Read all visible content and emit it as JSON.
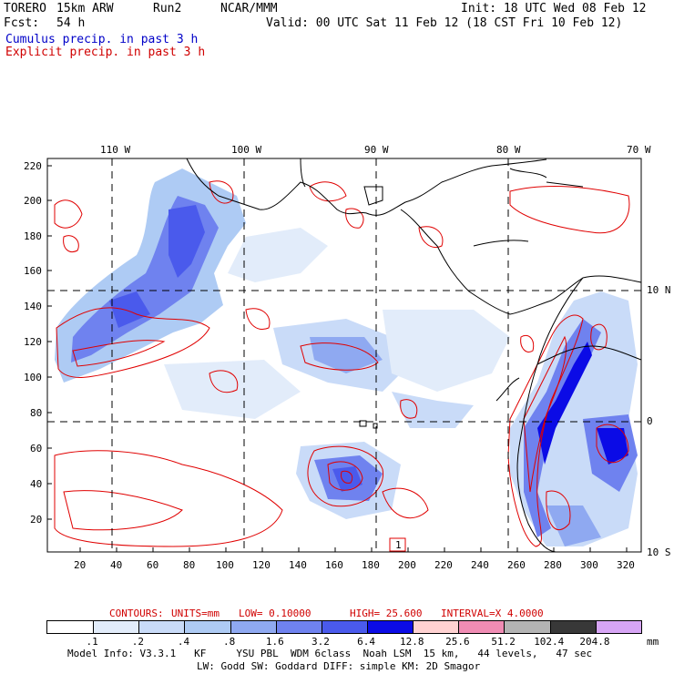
{
  "header": {
    "model": "TORERO",
    "resolution": "15km ARW",
    "run": "Run2",
    "org": "NCAR/MMM",
    "init": "Init: 18 UTC Wed 08 Feb 12",
    "fcst_label": "Fcst:",
    "fcst_value": "54 h",
    "valid": "Valid: 00 UTC Sat 11 Feb 12 (18 CST Fri 10 Feb 12)"
  },
  "legend_fields": {
    "cumulus": "Cumulus precip. in past 3 h",
    "explicit": "Explicit precip. in past 3 h"
  },
  "axes": {
    "top_lon": [
      "110 W",
      "100 W",
      "90 W",
      "80 W",
      "70 W"
    ],
    "right_lat": [
      "10 N",
      "0",
      "10 S"
    ],
    "left_ticks": [
      "220",
      "200",
      "180",
      "160",
      "140",
      "120",
      "100",
      "80",
      "60",
      "40",
      "20"
    ],
    "bottom_ticks": [
      "20",
      "40",
      "60",
      "80",
      "100",
      "120",
      "140",
      "160",
      "180",
      "200",
      "220",
      "240",
      "260",
      "280",
      "300",
      "320"
    ],
    "box_label": "1"
  },
  "contours_line": {
    "label": "CONTOURS:",
    "units": "UNITS=mm",
    "low": "LOW= 0.10000",
    "high": "HIGH= 25.600",
    "interval": "INTERVAL=X 4.0000"
  },
  "colorbar": {
    "labels": [
      ".1",
      ".2",
      ".4",
      ".8",
      "1.6",
      "3.2",
      "6.4",
      "12.8",
      "25.6",
      "51.2",
      "102.4",
      "204.8"
    ],
    "unit": "mm",
    "colors": [
      "#ffffff",
      "#e2ecfa",
      "#c9dbf8",
      "#aecbf4",
      "#8fa9f1",
      "#6f82ef",
      "#4a5aec",
      "#0b0be6",
      "#ffd2d2",
      "#f08cb4",
      "#b4b4b4",
      "#383838",
      "#d7a5f5"
    ]
  },
  "footer": {
    "line1": "Model Info: V3.3.1   KF     YSU PBL  WDM 6class  Noah LSM  15 km,   44 levels,   47 sec",
    "line2": "LW: Godd SW: Goddard DIFF: simple KM: 2D Smagor"
  }
}
